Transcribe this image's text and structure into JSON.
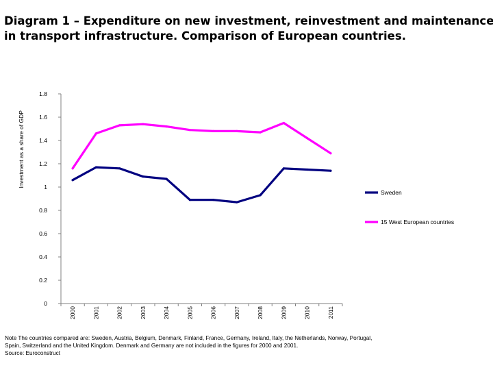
{
  "title_line1": "Diagram 1 – Expenditure on new investment, reinvestment and maintenance",
  "title_line2": "in transport infrastructure. Comparison of European countries.",
  "note_line1": "Note The countries compared are: Sweden, Austria, Belgium, Denmark, Finland, France, Germany, Ireland, Italy, the Netherlands, Norway, Portugal,",
  "note_line2": "Spain, Switzerland and the United Kingdom. Denmark and Germany are not included in the figures for 2000 and 2001.",
  "source": "Source: Euroconstruct",
  "chart_data": {
    "type": "line",
    "title": "",
    "xlabel": "",
    "ylabel": "Investment as a share of GDP",
    "ylim": [
      0,
      1.8
    ],
    "yticks": [
      "0",
      "0.2",
      "0.4",
      "0.6",
      "0.8",
      "1",
      "1.2",
      "1.4",
      "1.6",
      "1.8"
    ],
    "categories": [
      "2000",
      "2001",
      "2002",
      "2003",
      "2004",
      "2005",
      "2006",
      "2007",
      "2008",
      "2009",
      "2010",
      "2011"
    ],
    "grid": false,
    "legend_position": "right",
    "series": [
      {
        "name": "Sweden",
        "color": "#000080",
        "values": [
          1.06,
          1.17,
          1.16,
          1.09,
          1.07,
          0.89,
          0.89,
          0.87,
          0.93,
          1.16,
          1.15,
          1.14
        ]
      },
      {
        "name": "15 West European countries",
        "color": "#ff00ff",
        "values": [
          1.16,
          1.46,
          1.53,
          1.54,
          1.52,
          1.49,
          1.48,
          1.48,
          1.47,
          1.55,
          1.42,
          1.29
        ]
      }
    ]
  }
}
